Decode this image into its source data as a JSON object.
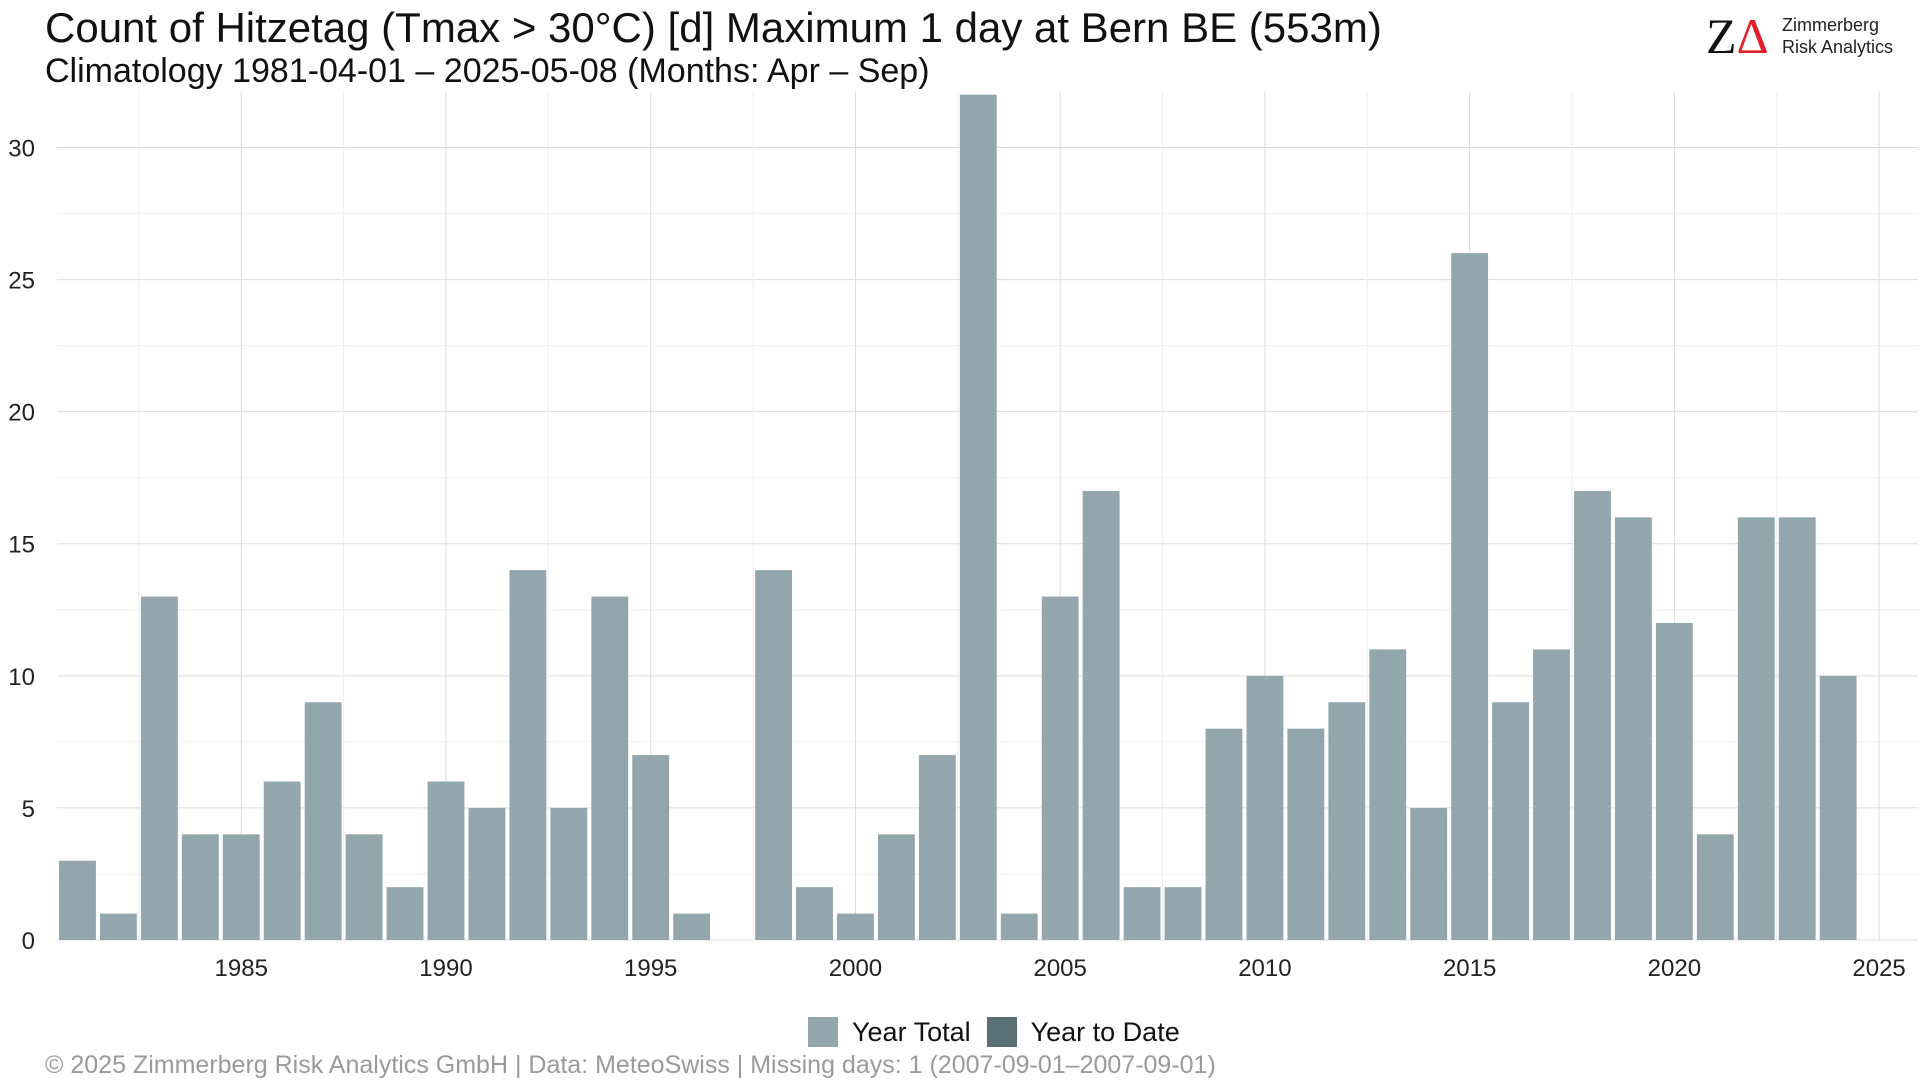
{
  "header": {
    "title": "Count of Hitzetag (Tmax > 30°C) [d] Maximum 1 day at Bern  BE (553m)",
    "subtitle": "Climatology 1981-04-01 – 2025-05-08 (Months: Apr – Sep)"
  },
  "logo": {
    "mark_z": "Z",
    "mark_delta": "Δ",
    "line1": "Zimmerberg",
    "line2": "Risk Analytics",
    "delta_color": "#e0202a"
  },
  "footer": {
    "text": "©  2025 Zimmerberg Risk Analytics GmbH | Data: MeteoSwiss | Missing days: 1 (2007-09-01–2007-09-01)"
  },
  "legend": {
    "items": [
      {
        "label": "Year Total",
        "color": "#93a6ad"
      },
      {
        "label": "Year to Date",
        "color": "#5a6e75"
      }
    ]
  },
  "chart_data": {
    "type": "bar",
    "title": "Count of Hitzetag (Tmax > 30°C) [d] Maximum 1 day at Bern  BE (553m)",
    "subtitle": "Climatology 1981-04-01 – 2025-05-08 (Months: Apr – Sep)",
    "xlabel": "",
    "ylabel": "",
    "x": [
      1981,
      1982,
      1983,
      1984,
      1985,
      1986,
      1987,
      1988,
      1989,
      1990,
      1991,
      1992,
      1993,
      1994,
      1995,
      1996,
      1997,
      1998,
      1999,
      2000,
      2001,
      2002,
      2003,
      2004,
      2005,
      2006,
      2007,
      2008,
      2009,
      2010,
      2011,
      2012,
      2013,
      2014,
      2015,
      2016,
      2017,
      2018,
      2019,
      2020,
      2021,
      2022,
      2023,
      2024,
      2025
    ],
    "series": [
      {
        "name": "Year Total",
        "color": "#93a6ad",
        "values": [
          3,
          1,
          13,
          4,
          4,
          6,
          9,
          4,
          2,
          6,
          5,
          14,
          5,
          13,
          7,
          1,
          0,
          14,
          2,
          1,
          4,
          7,
          32,
          1,
          13,
          17,
          2,
          2,
          8,
          10,
          8,
          9,
          11,
          5,
          26,
          9,
          11,
          17,
          16,
          12,
          4,
          16,
          16,
          10,
          0
        ]
      },
      {
        "name": "Year to Date",
        "color": "#5a6e75",
        "values": [
          0,
          0,
          0,
          0,
          0,
          0,
          0,
          0,
          0,
          0,
          0,
          0,
          0,
          0,
          0,
          0,
          0,
          0,
          0,
          0,
          0,
          0,
          0,
          0,
          0,
          0,
          0,
          0,
          0,
          0,
          0,
          0,
          0,
          0,
          0,
          0,
          0,
          0,
          0,
          0,
          0,
          0,
          0,
          0,
          0
        ]
      }
    ],
    "xticks": [
      "1985",
      "1990",
      "1995",
      "2000",
      "2005",
      "2010",
      "2015",
      "2020",
      "2025"
    ],
    "xtick_values": [
      1985,
      1990,
      1995,
      2000,
      2005,
      2010,
      2015,
      2020,
      2025
    ],
    "yticks": [
      "0",
      "5",
      "10",
      "15",
      "20",
      "25",
      "30"
    ],
    "ytick_values": [
      0,
      5,
      10,
      15,
      20,
      25,
      30
    ],
    "xlim": [
      1980.5,
      2025.95
    ],
    "ylim": [
      0,
      32.1
    ],
    "grid": true,
    "legend_position": "bottom"
  }
}
